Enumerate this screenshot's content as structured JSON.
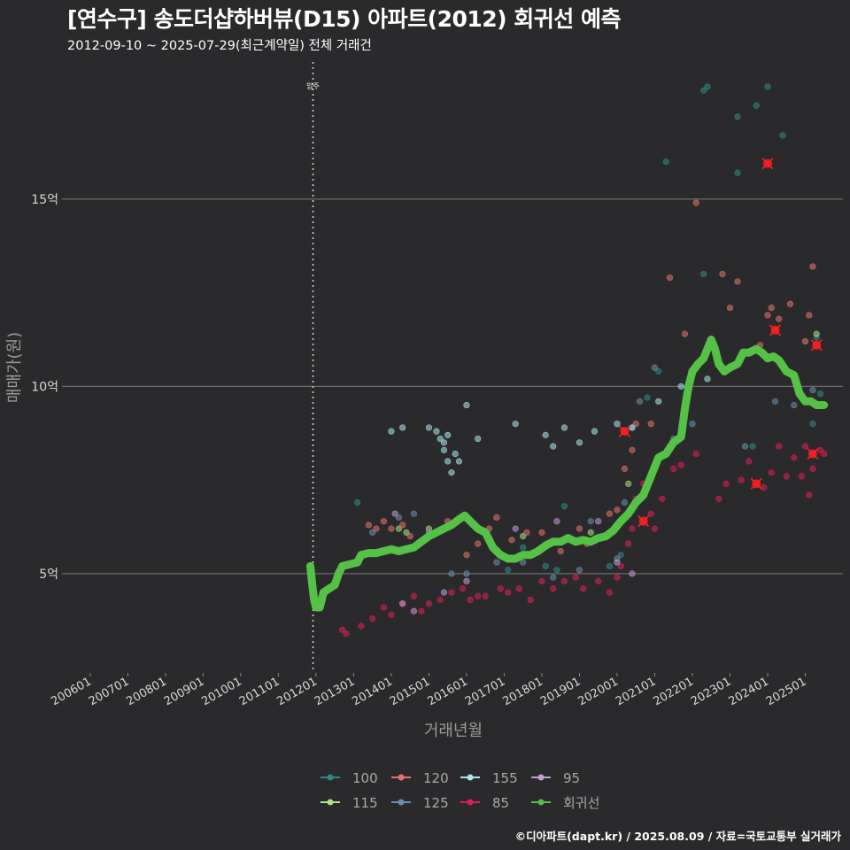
{
  "header": {
    "title": "[연수구] 송도더샵하버뷰(D15) 아파트(2012) 회귀선 예측",
    "subtitle": "2012-09-10 ~ 2025-07-29(최근계약일) 전체 거래건"
  },
  "footer": {
    "credit": "©디아파트(dapt.kr) / 2025.08.09 / 자료=국토교통부 실거래가"
  },
  "chart_data": {
    "type": "scatter",
    "xlabel": "거래년월",
    "ylabel": "매매가(원)",
    "x_ticks": [
      "200601",
      "200701",
      "200801",
      "200901",
      "201001",
      "201101",
      "201201",
      "201301",
      "201401",
      "201501",
      "201601",
      "201701",
      "201801",
      "201901",
      "202001",
      "202101",
      "202201",
      "202301",
      "202401",
      "202501"
    ],
    "y_ticks": [
      "5억",
      "10억",
      "15억"
    ],
    "y_tick_values": [
      5,
      10,
      15
    ],
    "xlim": [
      2005.25,
      2026.0
    ],
    "ylim": [
      2.35,
      18.85
    ],
    "grid": "horizontal major lines",
    "legend_position": "bottom",
    "annotation": {
      "label": "입주",
      "x": 2011.92
    },
    "colors": {
      "100": "#2e8b86",
      "115": "#a9e38e",
      "120": "#e8726b",
      "125": "#6b8fb0",
      "155": "#a8e8ec",
      "85": "#e01e5a",
      "95": "#c79ad8",
      "regression": "#55c146",
      "highlight": "#ff2020"
    },
    "series": [
      {
        "name": "100",
        "points": [
          [
            2013.1,
            6.9
          ],
          [
            2017.1,
            5.1
          ],
          [
            2017.5,
            5.7
          ],
          [
            2018.1,
            5.2
          ],
          [
            2018.4,
            5.1
          ],
          [
            2018.6,
            6.8
          ],
          [
            2019.8,
            5.2
          ],
          [
            2020.1,
            5.5
          ],
          [
            2020.8,
            9.7
          ],
          [
            2021.1,
            10.4
          ],
          [
            2021.3,
            16.0
          ],
          [
            2022.3,
            13.0
          ],
          [
            2022.3,
            17.9
          ],
          [
            2022.4,
            18.0
          ],
          [
            2023.2,
            17.2
          ],
          [
            2023.6,
            8.4
          ],
          [
            2023.7,
            17.5
          ],
          [
            2024.0,
            18.0
          ],
          [
            2024.4,
            16.7
          ],
          [
            2025.3,
            11.3
          ],
          [
            2025.4,
            9.8
          ],
          [
            2025.2,
            9.0
          ],
          [
            2023.2,
            15.7
          ]
        ]
      },
      {
        "name": "115",
        "points": [
          [
            2014.2,
            6.2
          ],
          [
            2014.4,
            6.1
          ],
          [
            2015.0,
            6.2
          ],
          [
            2017.5,
            6.0
          ],
          [
            2019.3,
            6.1
          ],
          [
            2020.3,
            7.4
          ],
          [
            2025.3,
            11.4
          ]
        ]
      },
      {
        "name": "120",
        "points": [
          [
            2013.4,
            6.3
          ],
          [
            2013.6,
            6.2
          ],
          [
            2013.8,
            6.4
          ],
          [
            2014.0,
            6.2
          ],
          [
            2014.3,
            6.3
          ],
          [
            2014.5,
            6.0
          ],
          [
            2015.0,
            6.1
          ],
          [
            2015.5,
            6.4
          ],
          [
            2016.0,
            5.5
          ],
          [
            2016.3,
            5.8
          ],
          [
            2016.6,
            6.2
          ],
          [
            2016.8,
            6.5
          ],
          [
            2017.2,
            5.9
          ],
          [
            2017.6,
            6.1
          ],
          [
            2018.0,
            6.1
          ],
          [
            2018.5,
            5.6
          ],
          [
            2019.0,
            6.2
          ],
          [
            2019.2,
            5.8
          ],
          [
            2019.8,
            6.6
          ],
          [
            2020.0,
            6.7
          ],
          [
            2020.2,
            7.8
          ],
          [
            2020.4,
            8.3
          ],
          [
            2020.5,
            9.0
          ],
          [
            2020.9,
            9.0
          ],
          [
            2021.4,
            12.9
          ],
          [
            2021.8,
            11.4
          ],
          [
            2022.1,
            14.9
          ],
          [
            2022.8,
            13.0
          ],
          [
            2023.0,
            12.1
          ],
          [
            2023.2,
            12.8
          ],
          [
            2024.0,
            11.9
          ],
          [
            2024.1,
            12.1
          ],
          [
            2024.3,
            11.8
          ],
          [
            2024.6,
            12.2
          ],
          [
            2025.0,
            11.2
          ],
          [
            2025.2,
            13.2
          ],
          [
            2025.1,
            11.9
          ],
          [
            2023.8,
            11.1
          ]
        ]
      },
      {
        "name": "125",
        "points": [
          [
            2013.5,
            6.1
          ],
          [
            2014.2,
            6.5
          ],
          [
            2014.6,
            6.6
          ],
          [
            2015.0,
            6.1
          ],
          [
            2015.6,
            5.0
          ],
          [
            2016.0,
            5.0
          ],
          [
            2016.8,
            5.3
          ],
          [
            2017.5,
            5.3
          ],
          [
            2018.3,
            4.9
          ],
          [
            2019.0,
            5.1
          ],
          [
            2019.3,
            6.4
          ],
          [
            2019.8,
            6.1
          ],
          [
            2020.0,
            5.4
          ],
          [
            2020.2,
            6.9
          ],
          [
            2020.4,
            8.9
          ],
          [
            2020.6,
            9.6
          ],
          [
            2021.0,
            10.5
          ],
          [
            2021.5,
            8.6
          ],
          [
            2022.0,
            9.0
          ],
          [
            2023.4,
            8.4
          ],
          [
            2024.2,
            9.6
          ],
          [
            2024.7,
            9.5
          ],
          [
            2025.2,
            9.9
          ]
        ]
      },
      {
        "name": "155",
        "points": [
          [
            2014.0,
            8.8
          ],
          [
            2014.3,
            8.9
          ],
          [
            2015.0,
            8.9
          ],
          [
            2015.2,
            8.8
          ],
          [
            2015.3,
            8.6
          ],
          [
            2015.4,
            8.3
          ],
          [
            2015.5,
            8.0
          ],
          [
            2015.6,
            7.7
          ],
          [
            2015.8,
            8.0
          ],
          [
            2015.7,
            8.2
          ],
          [
            2015.4,
            8.5
          ],
          [
            2015.5,
            8.7
          ],
          [
            2016.0,
            9.5
          ],
          [
            2016.3,
            8.6
          ],
          [
            2017.3,
            9.0
          ],
          [
            2018.1,
            8.7
          ],
          [
            2018.3,
            8.4
          ],
          [
            2018.6,
            8.9
          ],
          [
            2019.0,
            8.5
          ],
          [
            2019.4,
            8.8
          ],
          [
            2020.0,
            9.0
          ],
          [
            2020.4,
            8.9
          ],
          [
            2021.1,
            9.6
          ],
          [
            2021.7,
            10.0
          ],
          [
            2022.4,
            10.2
          ]
        ]
      },
      {
        "name": "85",
        "points": [
          [
            2012.7,
            3.5
          ],
          [
            2012.8,
            3.4
          ],
          [
            2013.2,
            3.6
          ],
          [
            2013.5,
            3.8
          ],
          [
            2013.8,
            4.1
          ],
          [
            2014.0,
            3.9
          ],
          [
            2014.3,
            4.2
          ],
          [
            2014.6,
            4.4
          ],
          [
            2014.8,
            4.0
          ],
          [
            2015.0,
            4.2
          ],
          [
            2015.3,
            4.3
          ],
          [
            2015.6,
            4.5
          ],
          [
            2015.9,
            4.6
          ],
          [
            2016.1,
            4.3
          ],
          [
            2016.3,
            4.4
          ],
          [
            2016.5,
            4.4
          ],
          [
            2016.9,
            4.6
          ],
          [
            2017.1,
            4.5
          ],
          [
            2017.4,
            4.6
          ],
          [
            2017.7,
            4.3
          ],
          [
            2018.0,
            4.8
          ],
          [
            2018.3,
            4.6
          ],
          [
            2018.6,
            4.8
          ],
          [
            2018.9,
            4.9
          ],
          [
            2019.1,
            4.6
          ],
          [
            2019.5,
            4.8
          ],
          [
            2019.8,
            4.5
          ],
          [
            2020.0,
            4.9
          ],
          [
            2020.1,
            5.2
          ],
          [
            2020.3,
            5.8
          ],
          [
            2020.4,
            6.2
          ],
          [
            2020.5,
            7.0
          ],
          [
            2020.7,
            7.4
          ],
          [
            2020.9,
            6.6
          ],
          [
            2021.0,
            6.2
          ],
          [
            2021.2,
            7.0
          ],
          [
            2021.5,
            7.8
          ],
          [
            2021.7,
            7.9
          ],
          [
            2022.1,
            8.2
          ],
          [
            2022.7,
            7.0
          ],
          [
            2022.9,
            7.4
          ],
          [
            2023.3,
            7.5
          ],
          [
            2023.5,
            8.0
          ],
          [
            2023.9,
            7.3
          ],
          [
            2024.1,
            7.7
          ],
          [
            2024.3,
            8.4
          ],
          [
            2024.5,
            7.6
          ],
          [
            2024.7,
            8.1
          ],
          [
            2024.9,
            7.6
          ],
          [
            2025.0,
            8.4
          ],
          [
            2025.2,
            7.8
          ],
          [
            2025.4,
            8.3
          ],
          [
            2025.5,
            8.2
          ],
          [
            2025.1,
            7.1
          ]
        ]
      },
      {
        "name": "95",
        "points": [
          [
            2014.1,
            6.6
          ],
          [
            2014.3,
            4.2
          ],
          [
            2014.6,
            4.0
          ],
          [
            2015.4,
            4.5
          ],
          [
            2016.0,
            4.8
          ],
          [
            2017.3,
            6.2
          ],
          [
            2018.4,
            6.4
          ],
          [
            2019.5,
            6.4
          ],
          [
            2020.0,
            5.3
          ],
          [
            2020.4,
            5.0
          ]
        ]
      }
    ],
    "regression": {
      "name": "회귀선",
      "points": [
        [
          2011.85,
          5.2
        ],
        [
          2011.9,
          4.7
        ],
        [
          2011.95,
          4.3
        ],
        [
          2012.0,
          4.1
        ],
        [
          2012.1,
          4.1
        ],
        [
          2012.2,
          4.5
        ],
        [
          2012.35,
          4.6
        ],
        [
          2012.5,
          4.7
        ],
        [
          2012.6,
          5.0
        ],
        [
          2012.7,
          5.2
        ],
        [
          2012.9,
          5.25
        ],
        [
          2013.1,
          5.3
        ],
        [
          2013.2,
          5.5
        ],
        [
          2013.4,
          5.55
        ],
        [
          2013.6,
          5.55
        ],
        [
          2013.8,
          5.6
        ],
        [
          2014.0,
          5.65
        ],
        [
          2014.2,
          5.6
        ],
        [
          2014.4,
          5.65
        ],
        [
          2014.6,
          5.7
        ],
        [
          2014.8,
          5.85
        ],
        [
          2015.0,
          6.0
        ],
        [
          2015.2,
          6.1
        ],
        [
          2015.4,
          6.2
        ],
        [
          2015.6,
          6.3
        ],
        [
          2015.8,
          6.45
        ],
        [
          2015.95,
          6.55
        ],
        [
          2016.1,
          6.4
        ],
        [
          2016.3,
          6.2
        ],
        [
          2016.5,
          6.1
        ],
        [
          2016.7,
          5.7
        ],
        [
          2016.9,
          5.5
        ],
        [
          2017.1,
          5.4
        ],
        [
          2017.3,
          5.4
        ],
        [
          2017.5,
          5.5
        ],
        [
          2017.7,
          5.5
        ],
        [
          2017.9,
          5.6
        ],
        [
          2018.1,
          5.75
        ],
        [
          2018.3,
          5.85
        ],
        [
          2018.5,
          5.85
        ],
        [
          2018.7,
          5.95
        ],
        [
          2018.9,
          5.85
        ],
        [
          2019.1,
          5.9
        ],
        [
          2019.3,
          5.85
        ],
        [
          2019.5,
          5.95
        ],
        [
          2019.7,
          6.0
        ],
        [
          2019.9,
          6.15
        ],
        [
          2020.1,
          6.4
        ],
        [
          2020.3,
          6.6
        ],
        [
          2020.5,
          6.9
        ],
        [
          2020.7,
          7.1
        ],
        [
          2020.9,
          7.6
        ],
        [
          2021.1,
          8.1
        ],
        [
          2021.3,
          8.2
        ],
        [
          2021.5,
          8.5
        ],
        [
          2021.7,
          8.65
        ],
        [
          2021.8,
          9.4
        ],
        [
          2021.9,
          10.0
        ],
        [
          2022.0,
          10.4
        ],
        [
          2022.15,
          10.6
        ],
        [
          2022.3,
          10.75
        ],
        [
          2022.4,
          11.0
        ],
        [
          2022.5,
          11.25
        ],
        [
          2022.6,
          11.0
        ],
        [
          2022.7,
          10.6
        ],
        [
          2022.85,
          10.4
        ],
        [
          2023.0,
          10.5
        ],
        [
          2023.2,
          10.6
        ],
        [
          2023.35,
          10.9
        ],
        [
          2023.5,
          10.9
        ],
        [
          2023.7,
          11.0
        ],
        [
          2023.85,
          10.9
        ],
        [
          2024.0,
          10.75
        ],
        [
          2024.15,
          10.8
        ],
        [
          2024.3,
          10.7
        ],
        [
          2024.5,
          10.4
        ],
        [
          2024.7,
          10.3
        ],
        [
          2024.85,
          9.8
        ],
        [
          2025.0,
          9.6
        ],
        [
          2025.15,
          9.6
        ],
        [
          2025.3,
          9.5
        ],
        [
          2025.5,
          9.5
        ]
      ]
    },
    "highlights": [
      [
        2024.0,
        15.95
      ],
      [
        2024.2,
        11.5
      ],
      [
        2025.3,
        11.1
      ],
      [
        2023.7,
        7.4
      ],
      [
        2025.2,
        8.2
      ],
      [
        2020.2,
        8.8
      ],
      [
        2020.7,
        6.4
      ]
    ]
  },
  "legend": {
    "items": [
      {
        "label": "100",
        "color_key": "100"
      },
      {
        "label": "115",
        "color_key": "115"
      },
      {
        "label": "120",
        "color_key": "120"
      },
      {
        "label": "125",
        "color_key": "125"
      },
      {
        "label": "155",
        "color_key": "155"
      },
      {
        "label": "85",
        "color_key": "85"
      },
      {
        "label": "95",
        "color_key": "95"
      },
      {
        "label": "회귀선",
        "color_key": "regression"
      }
    ]
  }
}
